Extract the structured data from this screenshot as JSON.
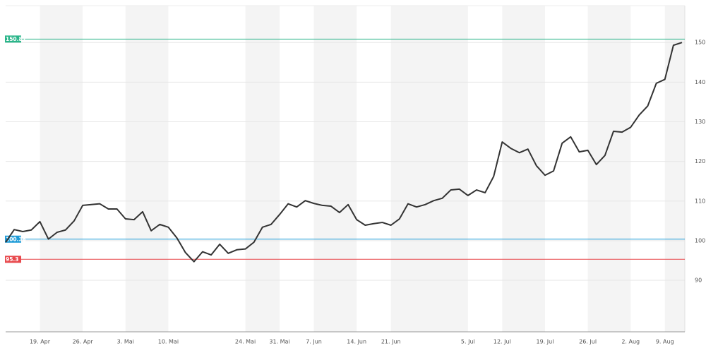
{
  "chart_data": {
    "type": "line",
    "categories": [
      null,
      null,
      null,
      null,
      "19. Apr",
      null,
      null,
      null,
      null,
      "26. Apr",
      null,
      null,
      null,
      null,
      "3. Mai",
      null,
      null,
      null,
      null,
      "10. Mai",
      null,
      null,
      null,
      null,
      null,
      null,
      null,
      null,
      "24. Mai",
      null,
      null,
      null,
      "31. Mai",
      null,
      null,
      null,
      "7. Jun",
      null,
      null,
      null,
      null,
      "14. Jun",
      null,
      null,
      null,
      "21. Jun",
      null,
      null,
      null,
      null,
      null,
      null,
      null,
      null,
      "5. Jul",
      null,
      null,
      null,
      "12. Jul",
      null,
      null,
      null,
      null,
      "19. Jul",
      null,
      null,
      null,
      null,
      "26. Jul",
      null,
      null,
      null,
      null,
      "2. Aug",
      null,
      null,
      null,
      "9. Aug",
      null,
      null
    ],
    "series": [
      {
        "color": "#333333",
        "values": [
          99.6,
          102.8,
          102.3,
          102.7,
          104.8,
          100.4,
          102.1,
          102.7,
          105.0,
          108.9,
          109.1,
          109.3,
          108.0,
          108.0,
          105.5,
          105.3,
          107.3,
          102.5,
          104.1,
          103.4,
          100.7,
          97.0,
          94.7,
          97.2,
          96.4,
          99.1,
          96.8,
          97.7,
          97.9,
          99.6,
          103.4,
          104.1,
          106.6,
          109.3,
          108.5,
          110.1,
          109.4,
          108.9,
          108.7,
          107.1,
          109.1,
          105.3,
          103.9,
          104.3,
          104.6,
          103.9,
          105.5,
          109.3,
          108.5,
          109.1,
          110.1,
          110.7,
          112.8,
          113.0,
          111.4,
          112.8,
          112.1,
          116.2,
          124.9,
          123.3,
          122.2,
          123.1,
          118.9,
          116.5,
          117.6,
          124.6,
          126.2,
          122.4,
          122.8,
          119.2,
          121.5,
          127.6,
          127.4,
          128.6,
          131.7,
          134.0,
          139.7,
          140.7,
          149.3,
          150.0
        ]
      }
    ],
    "reference_lines": [
      {
        "value": 150.87,
        "color": "#2bb58a"
      },
      {
        "value": 100.38,
        "color": "#1e9bd7"
      },
      {
        "value": 95.3,
        "color": "#e8484c"
      }
    ],
    "ylim": [
      77,
      159.3
    ],
    "yticks": [
      90,
      100,
      110,
      120,
      130,
      140,
      150
    ],
    "grid": true,
    "week_shading": true
  }
}
